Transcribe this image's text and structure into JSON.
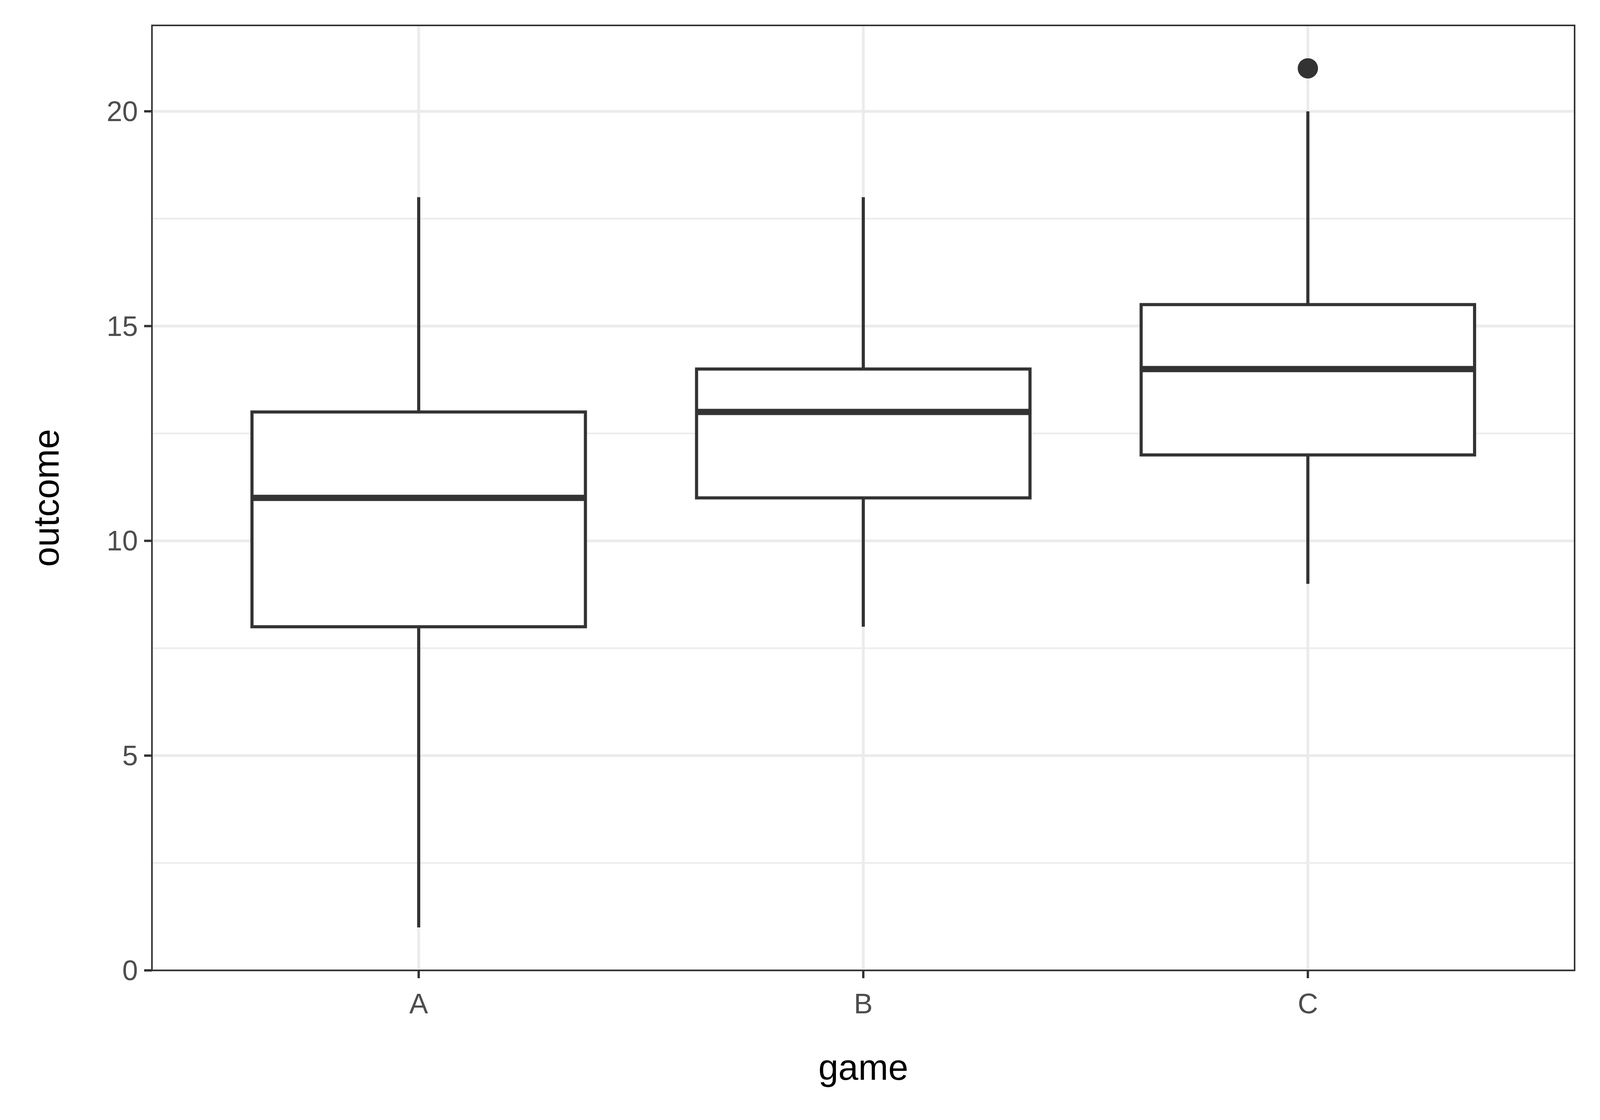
{
  "chart_data": {
    "type": "box",
    "x_label": "game",
    "y_label": "outcome",
    "categories": [
      "A",
      "B",
      "C"
    ],
    "boxes": [
      {
        "min": 1,
        "q1": 8,
        "median": 11,
        "q3": 13,
        "max": 18,
        "outliers": []
      },
      {
        "min": 8,
        "q1": 11,
        "median": 13,
        "q3": 14,
        "max": 18,
        "outliers": []
      },
      {
        "min": 9,
        "q1": 12,
        "median": 14,
        "q3": 15.5,
        "max": 20,
        "outliers": [
          21
        ]
      }
    ],
    "color": "#333333",
    "ylim": [
      0,
      22
    ],
    "yticks": [
      0,
      5,
      10,
      15,
      20
    ],
    "grid": true
  }
}
